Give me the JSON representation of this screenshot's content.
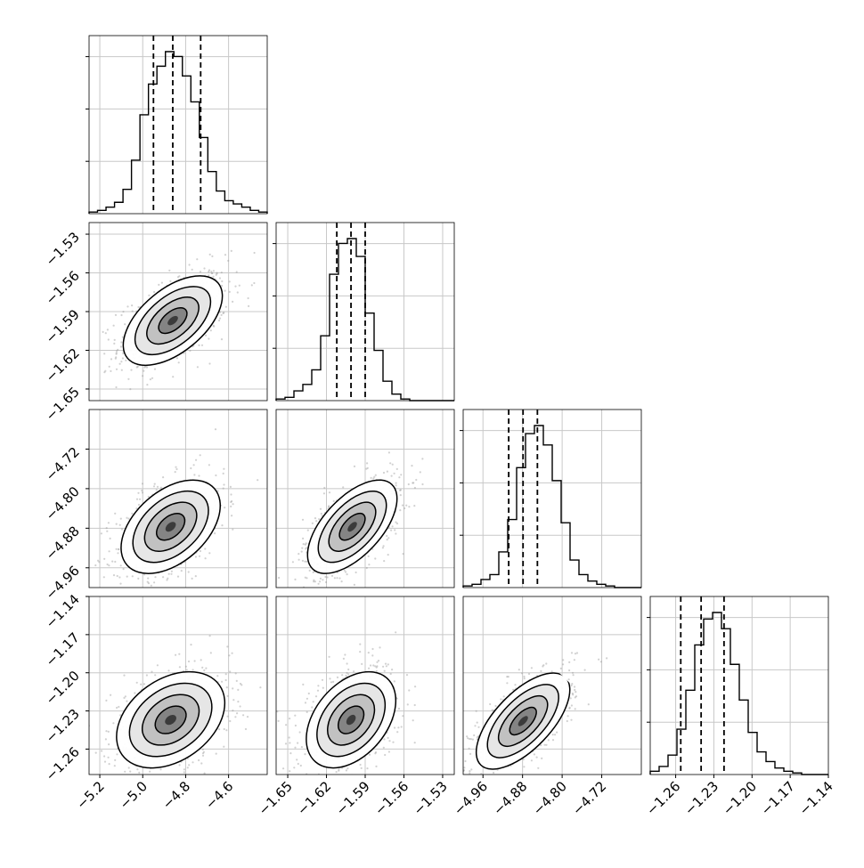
{
  "chart_data": {
    "type": "corner",
    "title": "",
    "parameters": [
      {
        "range": [
          -5.25,
          -4.42
        ],
        "ticks": [
          -5.2,
          -5.0,
          -4.8,
          -4.6
        ],
        "tick_labels": [
          "−5.2",
          "−5.0",
          "−4.8",
          "−4.6"
        ],
        "quantiles": [
          -4.95,
          -4.86,
          -4.73
        ]
      },
      {
        "range": [
          -1.659,
          -1.521
        ],
        "ticks": [
          -1.65,
          -1.62,
          -1.59,
          -1.56,
          -1.53
        ],
        "tick_labels": [
          "−1.65",
          "−1.62",
          "−1.59",
          "−1.56",
          "−1.53"
        ],
        "quantiles": [
          -1.612,
          -1.601,
          -1.59
        ]
      },
      {
        "range": [
          -5.0,
          -4.64
        ],
        "ticks": [
          -4.96,
          -4.88,
          -4.8,
          -4.72
        ],
        "tick_labels": [
          "−4.96",
          "−4.88",
          "−4.80",
          "−4.72"
        ],
        "quantiles": [
          -4.908,
          -4.879,
          -4.85
        ]
      },
      {
        "range": [
          -1.28,
          -1.14
        ],
        "ticks": [
          -1.26,
          -1.23,
          -1.2,
          -1.17,
          -1.14
        ],
        "tick_labels": [
          "−1.26",
          "−1.23",
          "−1.20",
          "−1.17",
          "−1.14"
        ],
        "quantiles": [
          -1.256,
          -1.24,
          -1.222
        ]
      }
    ],
    "histograms": [
      {
        "param": 0,
        "counts": [
          1,
          2,
          4,
          7,
          15,
          33,
          61,
          80,
          91,
          100,
          97,
          85,
          69,
          47,
          26,
          14,
          8,
          6,
          4,
          2,
          1
        ]
      },
      {
        "param": 1,
        "counts": [
          1,
          2,
          6,
          10,
          19,
          40,
          78,
          97,
          100,
          89,
          54,
          31,
          12,
          4,
          1,
          0,
          0,
          0,
          0,
          0
        ]
      },
      {
        "param": 2,
        "counts": [
          1,
          2,
          5,
          8,
          22,
          42,
          74,
          95,
          100,
          88,
          66,
          40,
          17,
          8,
          4,
          2,
          1,
          0,
          0,
          0
        ]
      },
      {
        "param": 3,
        "counts": [
          2,
          5,
          12,
          28,
          52,
          80,
          96,
          100,
          90,
          68,
          46,
          26,
          14,
          8,
          4,
          2,
          1,
          0,
          0,
          0
        ]
      }
    ],
    "pairs": [
      {
        "x": 0,
        "y": 1,
        "center": [
          -4.86,
          -1.597
        ],
        "sigma": [
          0.11,
          0.0165
        ],
        "corr": 0.55
      },
      {
        "x": 0,
        "y": 2,
        "center": [
          -4.87,
          -4.877
        ],
        "sigma": [
          0.11,
          0.045
        ],
        "corr": 0.45
      },
      {
        "x": 1,
        "y": 2,
        "center": [
          -1.6,
          -4.877
        ],
        "sigma": [
          0.0165,
          0.045
        ],
        "corr": 0.6
      },
      {
        "x": 0,
        "y": 3,
        "center": [
          -4.87,
          -1.237
        ],
        "sigma": [
          0.12,
          0.018
        ],
        "corr": 0.35
      },
      {
        "x": 1,
        "y": 3,
        "center": [
          -1.601,
          -1.237
        ],
        "sigma": [
          0.0165,
          0.018
        ],
        "corr": 0.4
      },
      {
        "x": 2,
        "y": 3,
        "center": [
          -4.879,
          -1.238
        ],
        "sigma": [
          0.045,
          0.018
        ],
        "corr": 0.65
      }
    ],
    "grid": true
  }
}
